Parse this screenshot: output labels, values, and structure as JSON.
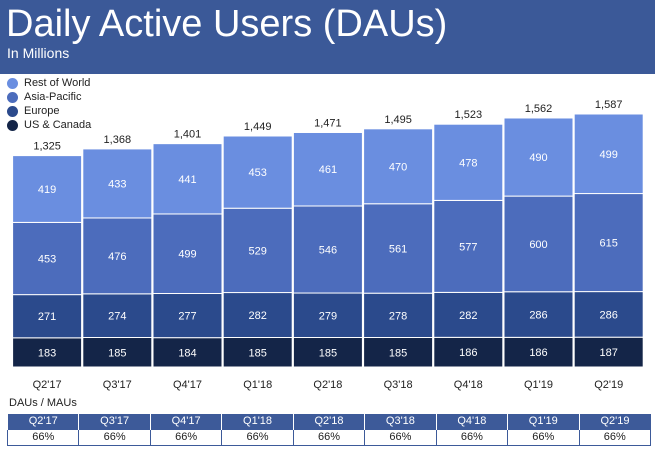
{
  "title": "Daily Active Users (DAUs)",
  "subtitle": "In Millions",
  "colors": {
    "header": "#3b5998",
    "rest_of_world": "#6a8ee0",
    "asia_pacific": "#4c6cbc",
    "europe": "#2b4a8c",
    "us_canada": "#142548",
    "table_header": "#3d5a99"
  },
  "legend": [
    {
      "label": "Rest of World",
      "color": "#6a8ee0"
    },
    {
      "label": "Asia-Pacific",
      "color": "#4c6cbc"
    },
    {
      "label": "Europe",
      "color": "#2b4a8c"
    },
    {
      "label": "US & Canada",
      "color": "#142548"
    }
  ],
  "chart_data": {
    "type": "bar",
    "stacked": true,
    "title": "Daily Active Users (DAUs)",
    "subtitle": "In Millions",
    "xlabel": "",
    "ylabel": "",
    "categories": [
      "Q2'17",
      "Q3'17",
      "Q4'17",
      "Q1'18",
      "Q2'18",
      "Q3'18",
      "Q4'18",
      "Q1'19",
      "Q2'19"
    ],
    "totals": [
      "1,325",
      "1,368",
      "1,401",
      "1,449",
      "1,471",
      "1,495",
      "1,523",
      "1,562",
      "1,587"
    ],
    "series": [
      {
        "name": "US & Canada",
        "values": [
          183,
          185,
          184,
          185,
          185,
          185,
          186,
          186,
          187
        ]
      },
      {
        "name": "Europe",
        "values": [
          271,
          274,
          277,
          282,
          279,
          278,
          282,
          286,
          286
        ]
      },
      {
        "name": "Asia-Pacific",
        "values": [
          453,
          476,
          499,
          529,
          546,
          561,
          577,
          600,
          615
        ]
      },
      {
        "name": "Rest of World",
        "values": [
          419,
          433,
          441,
          453,
          461,
          470,
          478,
          490,
          499
        ]
      }
    ],
    "ylim": [
      0,
      1600
    ],
    "grid": false,
    "legend_position": "top-left"
  },
  "ratio_table": {
    "label": "DAUs / MAUs",
    "quarters": [
      "Q2'17",
      "Q3'17",
      "Q4'17",
      "Q1'18",
      "Q2'18",
      "Q3'18",
      "Q4'18",
      "Q1'19",
      "Q2'19"
    ],
    "values": [
      "66%",
      "66%",
      "66%",
      "66%",
      "66%",
      "66%",
      "66%",
      "66%",
      "66%"
    ]
  }
}
